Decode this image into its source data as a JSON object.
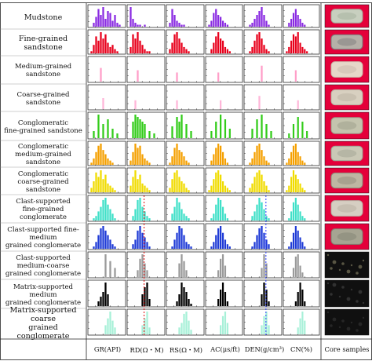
{
  "lithofacies": [
    "Mudstone",
    "Fine-grained sandstone",
    "Medium-grained sandstone",
    "Coarse-grained sandstone",
    "Conglomeratic fine-grained sandstone",
    "Conglomeratic medium-grained sandstone",
    "Conglomeratic coarse-grained sandstone",
    "Clast-supported fine-grained conglomerate",
    "Clast-supported fine-medium grained conglomerate",
    "Clast-supported medium-coarse grained conglomerate",
    "Matrix-supported medium grained conglomerate",
    "Matrix-supported coarse grained conglomerate"
  ],
  "labels": {
    "r0": "Mudstone",
    "r1a": "Fine-grained",
    "r1b": "sandstone",
    "r2a": "Medium-grained",
    "r2b": "sandstone",
    "r3a": "Coarse-grained",
    "r3b": "sandstone",
    "r4a": "Conglomeratic",
    "r4b": "fine-grained sandstone",
    "r5a": "Conglomeratic",
    "r5b": "medium-grained sandstone",
    "r6a": "Conglomeratic",
    "r6b": "coarse-grained sandstone",
    "r7a": "Clast-supported",
    "r7b": "fine-grained conglomerate",
    "r8a": "Clast-supported fine-medium",
    "r8b": "grained conglomerate",
    "r9a": "Clast-supported medium-coarse",
    "r9b": "grained conglomerate",
    "r10a": "Matrix-supported medium",
    "r10b": "grained conglomerate",
    "r11a": "Matrix-supported coarse",
    "r11b": "grained conglomerate"
  },
  "columns": [
    "GR(API)",
    "RD(Ω・M)",
    "RS(Ω・M)",
    "AC(μs/ft)",
    "DEN(g/cm³)",
    "CN(%)",
    "Core samples"
  ],
  "colors": {
    "Mudstone": "#8a2be2",
    "Fine-grained sandstone": "#e8001c",
    "Medium-grained sandstone": "#ff9ec8",
    "Coarse-grained sandstone": "#ffb6d9",
    "Conglomeratic fine-grained sandstone": "#33cc1a",
    "Conglomeratic medium-grained sandstone": "#f5a000",
    "Conglomeratic coarse-grained sandstone": "#f0dc00",
    "Clast-supported fine-grained conglomerate": "#40e0c8",
    "Clast-supported fine-medium grained conglomerate": "#1f3bd6",
    "Clast-supported medium-coarse grained conglomerate": "#9a9a9a",
    "Matrix-supported medium grained conglomerate": "#000000",
    "Matrix-supported coarse grained conglomerate": "#a8f0d8",
    "reference_red": "#e00000",
    "reference_blue": "#2a3cff",
    "core_panel": "#e4003a"
  },
  "chart_data": {
    "type": "bar",
    "xlabels": [
      "GR(API)",
      "RD(Ω・M)",
      "RS(Ω・M)",
      "AC(μs/ft)",
      "DEN(g/cm³)",
      "CN(%)"
    ],
    "grid": false,
    "reference_lines": [
      {
        "log": "RD(Ω・M)",
        "rows": [
          7,
          8,
          9,
          10,
          11
        ],
        "color": "red",
        "style": "dashed"
      },
      {
        "log": "DEN(g/cm³)",
        "rows": [
          7,
          8,
          9,
          10,
          11
        ],
        "color": "blue",
        "style": "dashed"
      }
    ],
    "histograms": [
      [
        [
          0,
          2,
          5,
          9,
          6,
          10,
          4,
          8,
          7,
          3,
          6,
          2,
          1,
          0
        ],
        [
          10,
          4,
          2,
          1,
          1,
          0,
          1,
          0,
          0,
          0,
          0,
          0,
          0,
          0
        ],
        [
          2,
          9,
          6,
          3,
          2,
          1,
          1,
          0,
          0,
          0,
          0,
          0,
          0,
          0
        ],
        [
          1,
          3,
          7,
          9,
          6,
          5,
          3,
          2,
          1,
          0,
          0,
          0,
          0,
          0
        ],
        [
          0,
          1,
          2,
          4,
          6,
          8,
          10,
          6,
          3,
          1,
          0,
          0,
          0,
          0
        ],
        [
          0,
          2,
          4,
          7,
          9,
          6,
          4,
          2,
          1,
          0,
          0,
          0,
          0,
          0
        ]
      ],
      [
        [
          1,
          4,
          8,
          6,
          10,
          7,
          9,
          5,
          3,
          4,
          2,
          1,
          0,
          0
        ],
        [
          3,
          9,
          7,
          10,
          6,
          4,
          2,
          1,
          1,
          0,
          0,
          0,
          0,
          0
        ],
        [
          2,
          5,
          9,
          10,
          7,
          5,
          3,
          2,
          1,
          0,
          0,
          0,
          0,
          0
        ],
        [
          0,
          2,
          5,
          8,
          10,
          7,
          6,
          3,
          2,
          1,
          0,
          0,
          0,
          0
        ],
        [
          0,
          1,
          3,
          6,
          9,
          10,
          7,
          4,
          2,
          1,
          0,
          0,
          0,
          0
        ],
        [
          1,
          3,
          6,
          9,
          8,
          10,
          5,
          3,
          2,
          1,
          0,
          0,
          0,
          0
        ]
      ],
      [
        [
          0,
          0,
          0,
          0,
          6,
          0,
          0,
          0,
          0,
          0,
          0,
          0,
          0,
          0
        ],
        [
          0,
          0,
          0,
          5,
          0,
          0,
          0,
          0,
          0,
          0,
          0,
          0,
          0,
          0
        ],
        [
          0,
          0,
          0,
          4,
          0,
          0,
          0,
          0,
          0,
          0,
          0,
          0,
          0,
          0
        ],
        [
          0,
          0,
          0,
          0,
          4,
          0,
          0,
          0,
          0,
          0,
          0,
          0,
          0,
          0
        ],
        [
          0,
          0,
          0,
          0,
          0,
          0,
          7,
          0,
          0,
          0,
          0,
          0,
          0,
          0
        ],
        [
          0,
          0,
          0,
          0,
          5,
          0,
          0,
          0,
          0,
          0,
          0,
          0,
          0,
          0
        ]
      ],
      [
        [
          0,
          0,
          0,
          0,
          0,
          5,
          0,
          0,
          0,
          0,
          0,
          0,
          0,
          0
        ],
        [
          0,
          0,
          4,
          0,
          0,
          0,
          0,
          0,
          0,
          0,
          0,
          0,
          0,
          0
        ],
        [
          0,
          0,
          0,
          4,
          0,
          0,
          0,
          0,
          0,
          0,
          0,
          0,
          0,
          0
        ],
        [
          0,
          0,
          0,
          0,
          0,
          4,
          0,
          0,
          0,
          0,
          0,
          0,
          0,
          0
        ],
        [
          0,
          0,
          0,
          0,
          0,
          6,
          0,
          0,
          0,
          0,
          0,
          0,
          0,
          0
        ],
        [
          0,
          0,
          0,
          0,
          0,
          4,
          0,
          0,
          0,
          0,
          0,
          0,
          0,
          0
        ]
      ],
      [
        [
          0,
          3,
          0,
          10,
          0,
          6,
          0,
          8,
          0,
          4,
          0,
          2,
          0,
          0
        ],
        [
          0,
          7,
          10,
          9,
          8,
          7,
          6,
          0,
          3,
          0,
          2,
          0,
          0,
          0
        ],
        [
          0,
          5,
          0,
          9,
          7,
          10,
          0,
          6,
          0,
          3,
          0,
          0,
          0,
          0
        ],
        [
          0,
          3,
          0,
          7,
          0,
          10,
          0,
          8,
          0,
          4,
          0,
          0,
          0,
          0
        ],
        [
          0,
          0,
          4,
          0,
          8,
          0,
          10,
          0,
          6,
          0,
          3,
          0,
          0,
          0
        ],
        [
          0,
          2,
          0,
          6,
          0,
          9,
          0,
          7,
          0,
          3,
          0,
          0,
          0,
          0
        ]
      ],
      [
        [
          1,
          3,
          6,
          9,
          10,
          7,
          5,
          3,
          2,
          1,
          0,
          0,
          0,
          0
        ],
        [
          2,
          6,
          10,
          8,
          9,
          5,
          3,
          2,
          1,
          0,
          0,
          0,
          0,
          0
        ],
        [
          1,
          4,
          8,
          10,
          7,
          6,
          4,
          2,
          1,
          0,
          0,
          0,
          0,
          0
        ],
        [
          0,
          2,
          5,
          8,
          10,
          9,
          6,
          3,
          1,
          0,
          0,
          0,
          0,
          0
        ],
        [
          0,
          1,
          3,
          6,
          9,
          10,
          7,
          4,
          2,
          1,
          0,
          0,
          0,
          0
        ],
        [
          1,
          3,
          6,
          9,
          10,
          6,
          4,
          2,
          1,
          0,
          0,
          0,
          0,
          0
        ]
      ],
      [
        [
          2,
          5,
          9,
          7,
          10,
          6,
          8,
          4,
          3,
          2,
          1,
          0,
          0,
          0
        ],
        [
          3,
          7,
          10,
          6,
          8,
          4,
          3,
          2,
          1,
          0,
          0,
          0,
          0,
          0
        ],
        [
          2,
          6,
          9,
          10,
          7,
          5,
          4,
          2,
          1,
          0,
          0,
          0,
          0,
          0
        ],
        [
          1,
          3,
          6,
          9,
          10,
          8,
          5,
          3,
          2,
          1,
          0,
          0,
          0,
          0
        ],
        [
          0,
          2,
          4,
          7,
          9,
          10,
          8,
          5,
          3,
          1,
          0,
          0,
          0,
          0
        ],
        [
          1,
          3,
          7,
          10,
          8,
          6,
          4,
          2,
          1,
          0,
          0,
          0,
          0,
          0
        ]
      ],
      [
        [
          0,
          1,
          2,
          4,
          6,
          9,
          10,
          7,
          5,
          3,
          1,
          0,
          0,
          0
        ],
        [
          0,
          2,
          5,
          9,
          10,
          6,
          4,
          2,
          1,
          0,
          0,
          0,
          0,
          0
        ],
        [
          0,
          3,
          6,
          10,
          8,
          5,
          3,
          2,
          1,
          0,
          0,
          0,
          0,
          0
        ],
        [
          0,
          1,
          3,
          7,
          10,
          9,
          6,
          3,
          1,
          0,
          0,
          0,
          0,
          0
        ],
        [
          0,
          0,
          2,
          4,
          7,
          10,
          8,
          5,
          2,
          1,
          0,
          0,
          0,
          0
        ],
        [
          0,
          1,
          4,
          8,
          10,
          7,
          4,
          2,
          1,
          0,
          0,
          0,
          0,
          0
        ]
      ],
      [
        [
          0,
          1,
          3,
          6,
          9,
          10,
          8,
          6,
          4,
          2,
          1,
          0,
          0,
          0
        ],
        [
          0,
          2,
          4,
          8,
          10,
          7,
          5,
          3,
          1,
          0,
          0,
          0,
          0,
          0
        ],
        [
          0,
          1,
          4,
          7,
          10,
          9,
          6,
          3,
          2,
          1,
          0,
          0,
          0,
          0
        ],
        [
          0,
          1,
          3,
          6,
          9,
          10,
          7,
          4,
          2,
          1,
          0,
          0,
          0,
          0
        ],
        [
          0,
          0,
          1,
          3,
          6,
          9,
          10,
          7,
          4,
          2,
          0,
          0,
          0,
          0
        ],
        [
          0,
          1,
          3,
          7,
          10,
          8,
          5,
          3,
          1,
          0,
          0,
          0,
          0,
          0
        ]
      ],
      [
        [
          0,
          0,
          0,
          0,
          0,
          0,
          10,
          0,
          7,
          0,
          4,
          0,
          0,
          0
        ],
        [
          0,
          0,
          0,
          3,
          8,
          10,
          6,
          3,
          0,
          0,
          0,
          0,
          0,
          0
        ],
        [
          0,
          0,
          0,
          0,
          6,
          10,
          7,
          3,
          0,
          0,
          0,
          0,
          0,
          0
        ],
        [
          0,
          0,
          0,
          0,
          3,
          8,
          10,
          5,
          0,
          0,
          0,
          0,
          0,
          0
        ],
        [
          0,
          0,
          0,
          0,
          0,
          0,
          4,
          10,
          6,
          0,
          0,
          0,
          0,
          0
        ],
        [
          0,
          0,
          0,
          4,
          9,
          10,
          5,
          2,
          0,
          0,
          0,
          0,
          0,
          0
        ]
      ],
      [
        [
          0,
          0,
          0,
          2,
          4,
          6,
          10,
          5,
          0,
          0,
          0,
          0,
          0,
          0
        ],
        [
          0,
          0,
          0,
          0,
          0,
          5,
          8,
          10,
          3,
          0,
          0,
          0,
          0,
          0
        ],
        [
          0,
          0,
          0,
          2,
          5,
          10,
          8,
          6,
          3,
          1,
          0,
          0,
          0,
          0
        ],
        [
          0,
          0,
          0,
          0,
          3,
          7,
          10,
          6,
          2,
          0,
          0,
          0,
          0,
          0
        ],
        [
          0,
          0,
          0,
          0,
          0,
          0,
          5,
          10,
          7,
          2,
          0,
          0,
          0,
          0
        ],
        [
          0,
          0,
          0,
          0,
          2,
          6,
          10,
          7,
          2,
          0,
          0,
          0,
          0,
          0
        ]
      ],
      [
        [
          0,
          0,
          0,
          0,
          0,
          0,
          4,
          7,
          10,
          6,
          3,
          0,
          0,
          0
        ],
        [
          0,
          0,
          0,
          0,
          0,
          4,
          7,
          10,
          3,
          0,
          0,
          0,
          0,
          0
        ],
        [
          0,
          0,
          0,
          0,
          3,
          5,
          9,
          10,
          6,
          2,
          0,
          0,
          0,
          0
        ],
        [
          0,
          0,
          0,
          0,
          0,
          4,
          8,
          10,
          5,
          0,
          0,
          0,
          0,
          0
        ],
        [
          0,
          0,
          0,
          0,
          0,
          0,
          4,
          8,
          10,
          4,
          0,
          0,
          0,
          0
        ],
        [
          0,
          0,
          0,
          0,
          0,
          3,
          7,
          10,
          6,
          0,
          0,
          0,
          0,
          0
        ]
      ]
    ]
  }
}
